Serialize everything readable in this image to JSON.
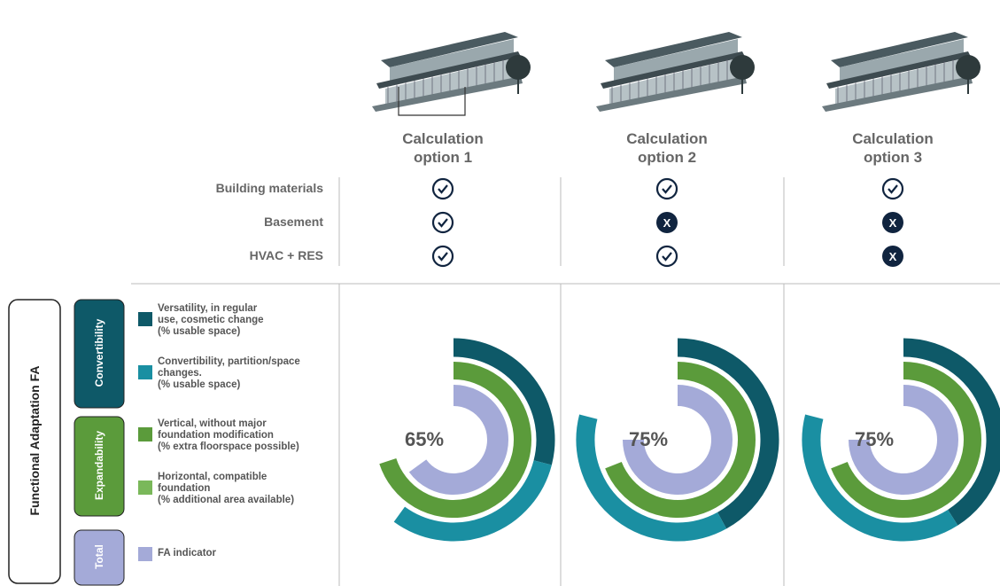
{
  "rows": [
    "Building materials",
    "Basement",
    "HVAC + RES"
  ],
  "x_label": "X",
  "side_title": "Functional Adaptation FA",
  "groups": [
    {
      "label": "Convertibility",
      "color": "#0e5968"
    },
    {
      "label": "Expandability",
      "color": "#5b9b3b"
    },
    {
      "label": "Total",
      "color": "#a4aad8"
    }
  ],
  "legend": [
    {
      "text": "Versatility, in regular\nuse, cosmetic change\n(% usable space)",
      "color": "#0e5968"
    },
    {
      "text": "Convertibility, partition/space\nchanges.\n(% usable space)",
      "color": "#1a8fa2"
    },
    {
      "text": "Vertical, without major\nfoundation modification\n(% extra floorspace possible)",
      "color": "#5b9b3b"
    },
    {
      "text": "Horizontal, compatible\nfoundation\n(% additional area available)",
      "color": "#7ab85a"
    },
    {
      "text": "FA indicator",
      "color": "#a4aad8"
    }
  ],
  "options": [
    {
      "title": "Calculation option 1",
      "checks": [
        true,
        true,
        true
      ],
      "fa_label": "65%",
      "rings": [
        29,
        31,
        70,
        null,
        65
      ]
    },
    {
      "title": "Calculation option 2",
      "checks": [
        true,
        false,
        true
      ],
      "fa_label": "75%",
      "rings": [
        42,
        37,
        69,
        null,
        75
      ]
    },
    {
      "title": "Calculation option 3",
      "checks": [
        true,
        false,
        false
      ],
      "fa_label": "75%",
      "rings": [
        41,
        38,
        69,
        null,
        75
      ]
    }
  ]
}
